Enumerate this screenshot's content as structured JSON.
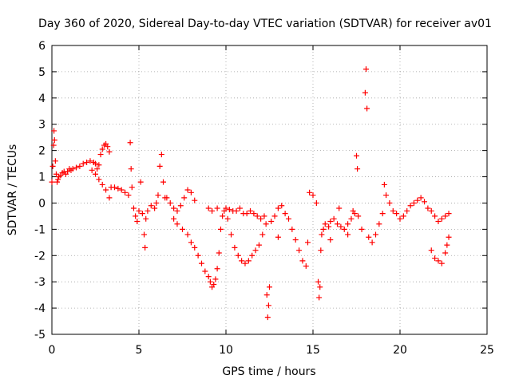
{
  "chart_data": {
    "type": "scatter",
    "title": "Day 360 of 2020, Sidereal Day-to-day VTEC variation (SDTVAR) for receiver av01",
    "xlabel": "GPS time / hours",
    "ylabel": "SDTVAR / TECUs",
    "xlim": [
      0,
      25
    ],
    "ylim": [
      -5,
      6
    ],
    "xticks": [
      "0",
      "5",
      "10",
      "15",
      "20",
      "25"
    ],
    "yticks": [
      "-5",
      "-4",
      "-3",
      "-2",
      "-1",
      "0",
      "1",
      "2",
      "3",
      "4",
      "5",
      "6"
    ],
    "grid": true,
    "marker": "+",
    "series": [
      {
        "name": "SDTVAR",
        "color": "#ff0000",
        "points": [
          [
            0.0,
            0.8
          ],
          [
            0.05,
            1.4
          ],
          [
            0.1,
            2.2
          ],
          [
            0.12,
            2.75
          ],
          [
            0.15,
            2.4
          ],
          [
            0.2,
            1.6
          ],
          [
            0.25,
            1.1
          ],
          [
            0.3,
            0.8
          ],
          [
            0.35,
            0.9
          ],
          [
            0.4,
            1.0
          ],
          [
            0.5,
            1.05
          ],
          [
            0.6,
            1.15
          ],
          [
            0.7,
            1.2
          ],
          [
            0.8,
            1.1
          ],
          [
            0.9,
            1.2
          ],
          [
            1.0,
            1.3
          ],
          [
            1.1,
            1.25
          ],
          [
            1.2,
            1.3
          ],
          [
            1.4,
            1.35
          ],
          [
            1.6,
            1.4
          ],
          [
            1.8,
            1.5
          ],
          [
            2.0,
            1.55
          ],
          [
            2.2,
            1.6
          ],
          [
            2.4,
            1.55
          ],
          [
            2.5,
            1.5
          ],
          [
            2.6,
            1.3
          ],
          [
            2.7,
            1.45
          ],
          [
            2.8,
            1.85
          ],
          [
            2.9,
            2.05
          ],
          [
            3.0,
            2.2
          ],
          [
            3.1,
            2.25
          ],
          [
            3.2,
            2.15
          ],
          [
            3.3,
            1.95
          ],
          [
            2.3,
            1.25
          ],
          [
            2.5,
            1.1
          ],
          [
            2.7,
            0.9
          ],
          [
            2.9,
            0.7
          ],
          [
            3.1,
            0.5
          ],
          [
            3.3,
            0.2
          ],
          [
            3.4,
            0.6
          ],
          [
            3.6,
            0.6
          ],
          [
            3.8,
            0.55
          ],
          [
            4.0,
            0.5
          ],
          [
            4.2,
            0.4
          ],
          [
            4.4,
            0.3
          ],
          [
            4.5,
            2.3
          ],
          [
            4.55,
            1.3
          ],
          [
            4.6,
            0.6
          ],
          [
            4.7,
            -0.2
          ],
          [
            4.8,
            -0.5
          ],
          [
            4.9,
            -0.7
          ],
          [
            5.0,
            -0.3
          ],
          [
            5.1,
            0.8
          ],
          [
            5.2,
            -0.4
          ],
          [
            5.3,
            -1.2
          ],
          [
            5.35,
            -1.7
          ],
          [
            5.4,
            -0.6
          ],
          [
            5.5,
            -0.3
          ],
          [
            5.7,
            -0.1
          ],
          [
            5.9,
            -0.2
          ],
          [
            6.0,
            0.0
          ],
          [
            6.1,
            0.3
          ],
          [
            6.2,
            1.4
          ],
          [
            6.3,
            1.85
          ],
          [
            6.4,
            0.8
          ],
          [
            6.5,
            0.2
          ],
          [
            6.6,
            0.2
          ],
          [
            6.8,
            0.0
          ],
          [
            7.0,
            -0.2
          ],
          [
            7.2,
            -0.3
          ],
          [
            7.4,
            -0.1
          ],
          [
            7.6,
            0.2
          ],
          [
            7.8,
            0.5
          ],
          [
            8.0,
            0.4
          ],
          [
            8.2,
            0.1
          ],
          [
            7.0,
            -0.6
          ],
          [
            7.2,
            -0.8
          ],
          [
            7.5,
            -1.0
          ],
          [
            7.8,
            -1.2
          ],
          [
            8.0,
            -1.5
          ],
          [
            8.2,
            -1.7
          ],
          [
            8.4,
            -2.0
          ],
          [
            8.6,
            -2.3
          ],
          [
            8.8,
            -2.6
          ],
          [
            9.0,
            -2.8
          ],
          [
            9.1,
            -3.0
          ],
          [
            9.2,
            -3.2
          ],
          [
            9.3,
            -3.1
          ],
          [
            9.4,
            -2.9
          ],
          [
            9.5,
            -2.5
          ],
          [
            9.6,
            -1.9
          ],
          [
            9.7,
            -1.0
          ],
          [
            9.8,
            -0.5
          ],
          [
            9.9,
            -0.3
          ],
          [
            10.0,
            -0.2
          ],
          [
            10.2,
            -0.25
          ],
          [
            10.4,
            -0.3
          ],
          [
            10.6,
            -0.3
          ],
          [
            10.8,
            -0.2
          ],
          [
            11.0,
            -0.4
          ],
          [
            9.0,
            -0.2
          ],
          [
            9.2,
            -0.3
          ],
          [
            9.5,
            -0.2
          ],
          [
            10.1,
            -0.6
          ],
          [
            10.3,
            -1.2
          ],
          [
            10.5,
            -1.7
          ],
          [
            10.7,
            -2.0
          ],
          [
            10.9,
            -2.2
          ],
          [
            11.1,
            -2.3
          ],
          [
            11.3,
            -2.2
          ],
          [
            11.5,
            -2.0
          ],
          [
            11.7,
            -1.8
          ],
          [
            11.9,
            -1.6
          ],
          [
            12.1,
            -1.2
          ],
          [
            12.3,
            -0.8
          ],
          [
            12.35,
            -3.5
          ],
          [
            12.4,
            -4.35
          ],
          [
            12.45,
            -3.9
          ],
          [
            12.5,
            -3.2
          ],
          [
            11.2,
            -0.4
          ],
          [
            11.4,
            -0.3
          ],
          [
            11.6,
            -0.4
          ],
          [
            11.8,
            -0.5
          ],
          [
            12.0,
            -0.6
          ],
          [
            12.2,
            -0.5
          ],
          [
            12.6,
            -0.7
          ],
          [
            12.8,
            -0.5
          ],
          [
            13.0,
            -0.2
          ],
          [
            13.2,
            -0.1
          ],
          [
            13.4,
            -0.4
          ],
          [
            13.6,
            -0.6
          ],
          [
            13.8,
            -1.0
          ],
          [
            14.0,
            -1.4
          ],
          [
            14.2,
            -1.8
          ],
          [
            14.4,
            -2.2
          ],
          [
            14.6,
            -2.4
          ],
          [
            14.7,
            -1.5
          ],
          [
            14.8,
            0.4
          ],
          [
            15.0,
            0.3
          ],
          [
            15.2,
            0.0
          ],
          [
            15.3,
            -3.0
          ],
          [
            15.35,
            -3.6
          ],
          [
            15.4,
            -3.2
          ],
          [
            15.45,
            -1.8
          ],
          [
            15.5,
            -1.2
          ],
          [
            15.6,
            -1.0
          ],
          [
            15.7,
            -0.8
          ],
          [
            15.9,
            -0.9
          ],
          [
            16.0,
            -0.7
          ],
          [
            16.2,
            -0.6
          ],
          [
            16.4,
            -0.8
          ],
          [
            16.6,
            -0.9
          ],
          [
            16.8,
            -1.0
          ],
          [
            17.0,
            -0.8
          ],
          [
            17.2,
            -0.6
          ],
          [
            17.4,
            -0.4
          ],
          [
            17.5,
            1.8
          ],
          [
            17.55,
            1.3
          ],
          [
            17.6,
            -0.5
          ],
          [
            17.8,
            -1.0
          ],
          [
            18.0,
            4.2
          ],
          [
            18.05,
            5.1
          ],
          [
            18.1,
            3.6
          ],
          [
            18.2,
            -1.3
          ],
          [
            18.4,
            -1.5
          ],
          [
            18.6,
            -1.2
          ],
          [
            18.8,
            -0.8
          ],
          [
            19.0,
            -0.4
          ],
          [
            19.1,
            0.7
          ],
          [
            19.2,
            0.3
          ],
          [
            19.4,
            0.0
          ],
          [
            19.6,
            -0.3
          ],
          [
            19.8,
            -0.4
          ],
          [
            20.0,
            -0.6
          ],
          [
            20.2,
            -0.5
          ],
          [
            20.4,
            -0.3
          ],
          [
            20.6,
            -0.1
          ],
          [
            20.8,
            0.0
          ],
          [
            21.0,
            0.1
          ],
          [
            21.2,
            0.2
          ],
          [
            21.4,
            0.05
          ],
          [
            21.6,
            -0.2
          ],
          [
            21.8,
            -0.3
          ],
          [
            22.0,
            -0.5
          ],
          [
            22.2,
            -0.7
          ],
          [
            22.4,
            -0.6
          ],
          [
            22.6,
            -0.5
          ],
          [
            22.8,
            -0.4
          ],
          [
            21.8,
            -1.8
          ],
          [
            22.0,
            -2.1
          ],
          [
            22.2,
            -2.2
          ],
          [
            22.4,
            -2.3
          ],
          [
            22.6,
            -1.9
          ],
          [
            22.7,
            -1.6
          ],
          [
            22.8,
            -1.3
          ],
          [
            16.5,
            -0.2
          ],
          [
            17.0,
            -1.2
          ],
          [
            17.3,
            -0.3
          ],
          [
            16.0,
            -1.4
          ],
          [
            13.0,
            -1.3
          ]
        ]
      }
    ]
  }
}
